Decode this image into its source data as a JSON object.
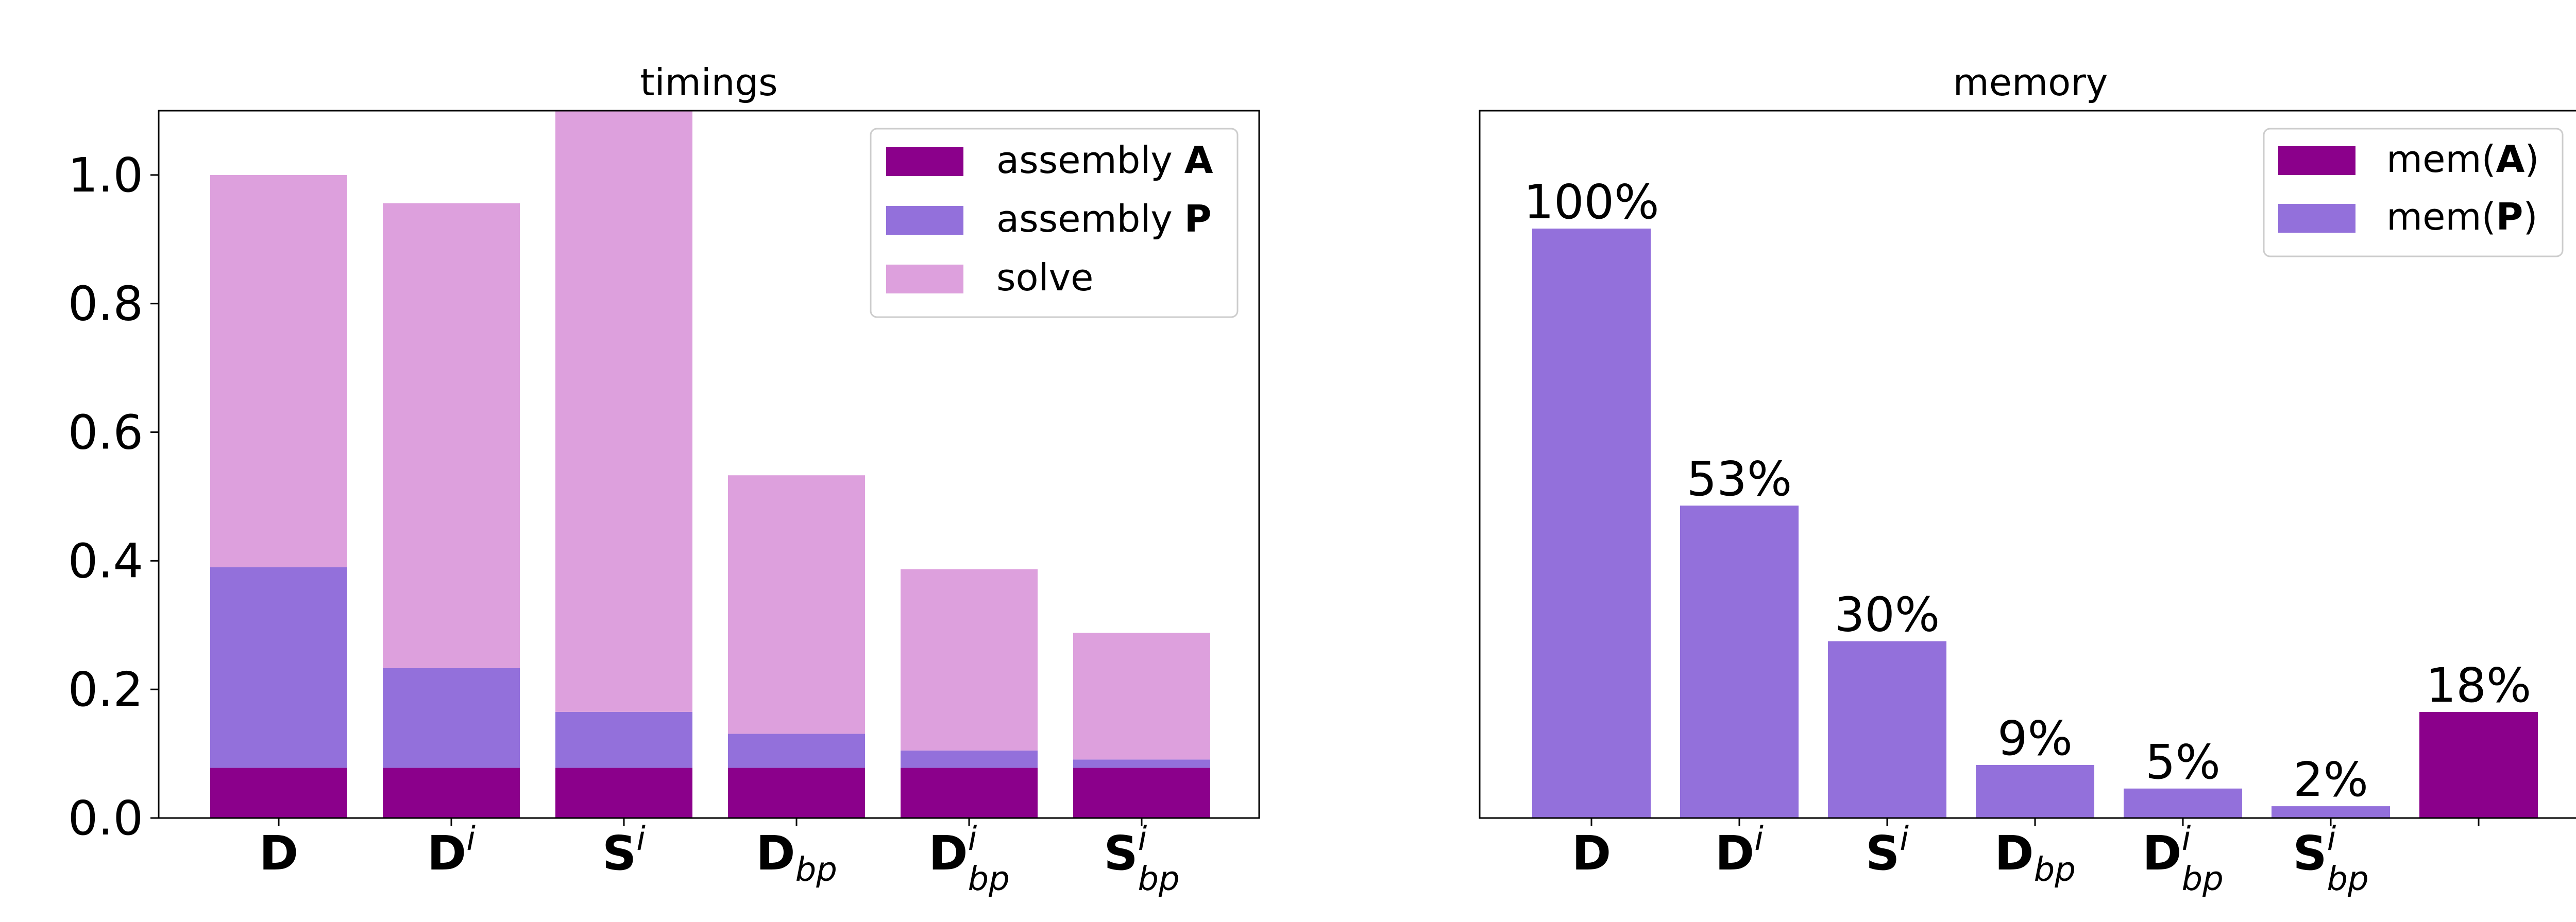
{
  "colors": {
    "assembly_A": "#8b008b",
    "assembly_P": "#9370db",
    "solve": "#dda0dd"
  },
  "chart_data": [
    {
      "type": "bar",
      "stacked": true,
      "title": "timings",
      "categories": [
        {
          "base": "D",
          "sup": "",
          "sub": ""
        },
        {
          "base": "D",
          "sup": "i",
          "sub": ""
        },
        {
          "base": "S",
          "sup": "i",
          "sub": ""
        },
        {
          "base": "D",
          "sup": "",
          "sub": "bp"
        },
        {
          "base": "D",
          "sup": "i",
          "sub": "bp"
        },
        {
          "base": "S",
          "sup": "i",
          "sub": "bp"
        }
      ],
      "series": [
        {
          "name_plain": "assembly ",
          "name_bold": "A",
          "color": "#8b008b",
          "values": [
            0.078,
            0.078,
            0.078,
            0.078,
            0.078,
            0.078
          ]
        },
        {
          "name_plain": "assembly ",
          "name_bold": "P",
          "color": "#9370db",
          "values": [
            0.312,
            0.155,
            0.087,
            0.053,
            0.027,
            0.013
          ]
        },
        {
          "name_plain": "solve",
          "name_bold": "",
          "color": "#dda0dd",
          "values": [
            0.61,
            0.723,
            0.935,
            0.402,
            0.282,
            0.197
          ]
        }
      ],
      "ylim": [
        0,
        1.1
      ],
      "yticks": [
        "0.0",
        "0.2",
        "0.4",
        "0.6",
        "0.8",
        "1.0"
      ],
      "ytick_values": [
        0,
        0.2,
        0.4,
        0.6,
        0.8,
        1.0
      ],
      "legend_position": "upper right"
    },
    {
      "type": "bar",
      "title": "memory",
      "categories": [
        {
          "base": "D",
          "sup": "",
          "sub": ""
        },
        {
          "base": "D",
          "sup": "i",
          "sub": ""
        },
        {
          "base": "S",
          "sup": "i",
          "sub": ""
        },
        {
          "base": "D",
          "sup": "",
          "sub": "bp"
        },
        {
          "base": "D",
          "sup": "i",
          "sub": "bp"
        },
        {
          "base": "S",
          "sup": "i",
          "sub": "bp"
        },
        {
          "base": "",
          "sup": "",
          "sub": ""
        }
      ],
      "values": [
        100,
        53,
        30,
        9,
        5,
        2,
        18
      ],
      "bar_series": [
        "P",
        "P",
        "P",
        "P",
        "P",
        "P",
        "A"
      ],
      "data_labels": [
        "100%",
        "53%",
        "30%",
        "9%",
        "5%",
        "2%",
        "18%"
      ],
      "series": [
        {
          "key": "A",
          "name_plain": "mem(",
          "name_bold": "A",
          "name_end": ")",
          "color": "#8b008b"
        },
        {
          "key": "P",
          "name_plain": "mem(",
          "name_bold": "P",
          "name_end": ")",
          "color": "#9370db"
        }
      ],
      "ylim": [
        0,
        120
      ],
      "show_yaxis": false,
      "legend_position": "upper right"
    }
  ]
}
